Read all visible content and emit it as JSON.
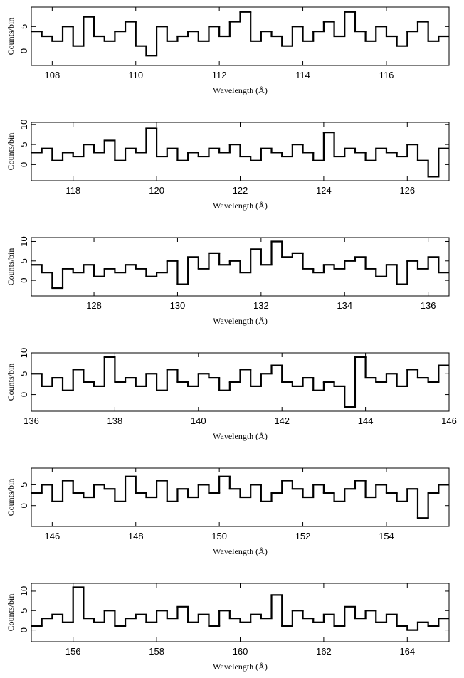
{
  "chart_data": [
    {
      "type": "step",
      "x_label": "Wavelength (Å)",
      "y_label": "Counts/bin",
      "color": "#000000",
      "xlim": [
        107.5,
        117.5
      ],
      "ylim": [
        -3,
        9
      ],
      "xticks": [
        108,
        110,
        112,
        114,
        116
      ],
      "yticks": [
        0,
        5
      ],
      "x": [
        107.625,
        107.875,
        108.125,
        108.375,
        108.625,
        108.875,
        109.125,
        109.375,
        109.625,
        109.875,
        110.125,
        110.375,
        110.625,
        110.875,
        111.125,
        111.375,
        111.625,
        111.875,
        112.125,
        112.375,
        112.625,
        112.875,
        113.125,
        113.375,
        113.625,
        113.875,
        114.125,
        114.375,
        114.625,
        114.875,
        115.125,
        115.375,
        115.625,
        115.875,
        116.125,
        116.375,
        116.625,
        116.875,
        117.125,
        117.375
      ],
      "values": [
        4,
        3,
        2,
        5,
        1,
        7,
        3,
        2,
        4,
        6,
        1,
        -1,
        5,
        2,
        3,
        4,
        2,
        5,
        3,
        6,
        8,
        2,
        4,
        3,
        1,
        5,
        2,
        4,
        6,
        3,
        8,
        4,
        2,
        5,
        3,
        1,
        4,
        6,
        2,
        3
      ]
    },
    {
      "type": "step",
      "x_label": "Wavelength (Å)",
      "y_label": "Counts/bin",
      "color": "#000000",
      "xlim": [
        117,
        127
      ],
      "ylim": [
        -4,
        10.5
      ],
      "xticks": [
        118,
        120,
        122,
        124,
        126
      ],
      "yticks": [
        0,
        5,
        10
      ],
      "x": [
        117.125,
        117.375,
        117.625,
        117.875,
        118.125,
        118.375,
        118.625,
        118.875,
        119.125,
        119.375,
        119.625,
        119.875,
        120.125,
        120.375,
        120.625,
        120.875,
        121.125,
        121.375,
        121.625,
        121.875,
        122.125,
        122.375,
        122.625,
        122.875,
        123.125,
        123.375,
        123.625,
        123.875,
        124.125,
        124.375,
        124.625,
        124.875,
        125.125,
        125.375,
        125.625,
        125.875,
        126.125,
        126.375,
        126.625,
        126.875
      ],
      "values": [
        3,
        4,
        1,
        3,
        2,
        5,
        3,
        6,
        1,
        4,
        3,
        9,
        2,
        4,
        1,
        3,
        2,
        4,
        3,
        5,
        2,
        1,
        4,
        3,
        2,
        5,
        3,
        1,
        8,
        2,
        4,
        3,
        1,
        4,
        3,
        2,
        5,
        1,
        -3,
        4
      ]
    },
    {
      "type": "step",
      "x_label": "Wavelength (Å)",
      "y_label": "Counts/bin",
      "color": "#000000",
      "xlim": [
        126.5,
        136.5
      ],
      "ylim": [
        -4,
        11
      ],
      "xticks": [
        128,
        130,
        132,
        134,
        136
      ],
      "yticks": [
        0,
        5,
        10
      ],
      "x": [
        126.625,
        126.875,
        127.125,
        127.375,
        127.625,
        127.875,
        128.125,
        128.375,
        128.625,
        128.875,
        129.125,
        129.375,
        129.625,
        129.875,
        130.125,
        130.375,
        130.625,
        130.875,
        131.125,
        131.375,
        131.625,
        131.875,
        132.125,
        132.375,
        132.625,
        132.875,
        133.125,
        133.375,
        133.625,
        133.875,
        134.125,
        134.375,
        134.625,
        134.875,
        135.125,
        135.375,
        135.625,
        135.875,
        136.125,
        136.375
      ],
      "values": [
        4,
        2,
        -2,
        3,
        2,
        4,
        1,
        3,
        2,
        4,
        3,
        1,
        2,
        5,
        -1,
        6,
        3,
        7,
        4,
        5,
        2,
        8,
        4,
        10,
        6,
        7,
        3,
        2,
        4,
        3,
        5,
        6,
        3,
        1,
        4,
        -1,
        5,
        3,
        6,
        2
      ]
    },
    {
      "type": "step",
      "x_label": "Wavelength (Å)",
      "y_label": "Counts/bin",
      "color": "#000000",
      "xlim": [
        136,
        146
      ],
      "ylim": [
        -4,
        10
      ],
      "xticks": [
        136,
        138,
        140,
        142,
        144,
        146
      ],
      "yticks": [
        0,
        5,
        10
      ],
      "x": [
        136.125,
        136.375,
        136.625,
        136.875,
        137.125,
        137.375,
        137.625,
        137.875,
        138.125,
        138.375,
        138.625,
        138.875,
        139.125,
        139.375,
        139.625,
        139.875,
        140.125,
        140.375,
        140.625,
        140.875,
        141.125,
        141.375,
        141.625,
        141.875,
        142.125,
        142.375,
        142.625,
        142.875,
        143.125,
        143.375,
        143.625,
        143.875,
        144.125,
        144.375,
        144.625,
        144.875,
        145.125,
        145.375,
        145.625,
        145.875
      ],
      "values": [
        5,
        2,
        4,
        1,
        6,
        3,
        2,
        9,
        3,
        4,
        2,
        5,
        1,
        6,
        3,
        2,
        5,
        4,
        1,
        3,
        6,
        2,
        5,
        7,
        3,
        2,
        4,
        1,
        3,
        2,
        -3,
        9,
        4,
        3,
        5,
        2,
        6,
        4,
        3,
        7
      ]
    },
    {
      "type": "step",
      "x_label": "Wavelength (Å)",
      "y_label": "Counts/bin",
      "color": "#000000",
      "xlim": [
        145.5,
        155.5
      ],
      "ylim": [
        -5,
        9
      ],
      "xticks": [
        146,
        148,
        150,
        152,
        154
      ],
      "yticks": [
        0,
        5
      ],
      "x": [
        145.625,
        145.875,
        146.125,
        146.375,
        146.625,
        146.875,
        147.125,
        147.375,
        147.625,
        147.875,
        148.125,
        148.375,
        148.625,
        148.875,
        149.125,
        149.375,
        149.625,
        149.875,
        150.125,
        150.375,
        150.625,
        150.875,
        151.125,
        151.375,
        151.625,
        151.875,
        152.125,
        152.375,
        152.625,
        152.875,
        153.125,
        153.375,
        153.625,
        153.875,
        154.125,
        154.375,
        154.625,
        154.875,
        155.125,
        155.375
      ],
      "values": [
        3,
        5,
        1,
        6,
        3,
        2,
        5,
        4,
        1,
        7,
        3,
        2,
        6,
        1,
        4,
        2,
        5,
        3,
        7,
        4,
        2,
        5,
        1,
        3,
        6,
        4,
        2,
        5,
        3,
        1,
        4,
        6,
        2,
        5,
        3,
        1,
        4,
        -3,
        3,
        5
      ]
    },
    {
      "type": "step",
      "x_label": "Wavelength (Å)",
      "y_label": "Counts/bin",
      "color": "#000000",
      "xlim": [
        155,
        165
      ],
      "ylim": [
        -3,
        12
      ],
      "xticks": [
        156,
        158,
        160,
        162,
        164
      ],
      "yticks": [
        0,
        5,
        10
      ],
      "x": [
        155.125,
        155.375,
        155.625,
        155.875,
        156.125,
        156.375,
        156.625,
        156.875,
        157.125,
        157.375,
        157.625,
        157.875,
        158.125,
        158.375,
        158.625,
        158.875,
        159.125,
        159.375,
        159.625,
        159.875,
        160.125,
        160.375,
        160.625,
        160.875,
        161.125,
        161.375,
        161.625,
        161.875,
        162.125,
        162.375,
        162.625,
        162.875,
        163.125,
        163.375,
        163.625,
        163.875,
        164.125,
        164.375,
        164.625,
        164.875
      ],
      "values": [
        1,
        3,
        4,
        2,
        11,
        3,
        2,
        5,
        1,
        3,
        4,
        2,
        5,
        3,
        6,
        2,
        4,
        1,
        5,
        3,
        2,
        4,
        3,
        9,
        1,
        5,
        3,
        2,
        4,
        1,
        6,
        3,
        5,
        2,
        4,
        1,
        0,
        2,
        1,
        3
      ]
    }
  ]
}
